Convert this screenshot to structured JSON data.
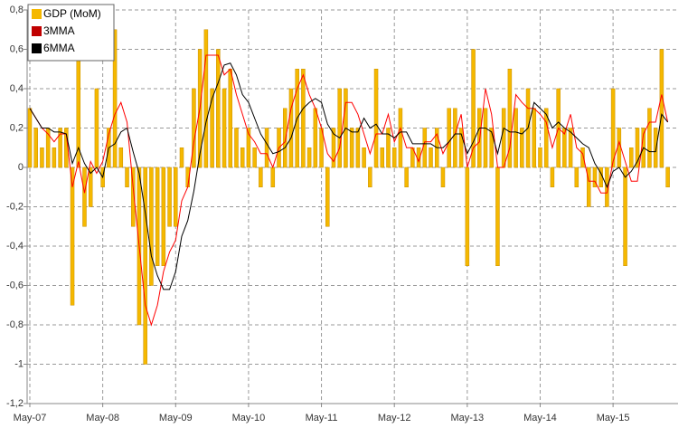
{
  "chart_data": {
    "type": "bar",
    "categories": [
      "May-07",
      null,
      null,
      null,
      null,
      null,
      null,
      null,
      null,
      null,
      null,
      null,
      "May-08",
      null,
      null,
      null,
      null,
      null,
      null,
      null,
      null,
      null,
      null,
      null,
      "May-09",
      null,
      null,
      null,
      null,
      null,
      null,
      null,
      null,
      null,
      null,
      null,
      "May-10",
      null,
      null,
      null,
      null,
      null,
      null,
      null,
      null,
      null,
      null,
      null,
      "May-11",
      null,
      null,
      null,
      null,
      null,
      null,
      null,
      null,
      null,
      null,
      null,
      "May-12",
      null,
      null,
      null,
      null,
      null,
      null,
      null,
      null,
      null,
      null,
      null,
      "May-13",
      null,
      null,
      null,
      null,
      null,
      null,
      null,
      null,
      null,
      null,
      null,
      "May-14",
      null,
      null,
      null,
      null,
      null,
      null,
      null,
      null,
      null,
      null,
      null,
      "May-15",
      null,
      null,
      null,
      null,
      null,
      null,
      null,
      null,
      null
    ],
    "series": [
      {
        "name": "GDP (MoM)",
        "type": "bar",
        "color": "#f5b800",
        "values": [
          0.3,
          0.2,
          0.1,
          0.2,
          0.1,
          0.2,
          0.2,
          -0.7,
          0.6,
          -0.3,
          -0.2,
          0.4,
          -0.1,
          0.2,
          0.7,
          0.1,
          -0.1,
          -0.3,
          -0.8,
          -1.0,
          -0.6,
          -0.5,
          -0.5,
          -0.3,
          -0.3,
          0.1,
          -0.1,
          0.4,
          0.6,
          0.7,
          0.4,
          0.6,
          0.4,
          0.5,
          0.2,
          0.1,
          0.2,
          0.1,
          -0.1,
          0.2,
          -0.1,
          0.2,
          0.3,
          0.4,
          0.5,
          0.5,
          0.1,
          0.3,
          0.2,
          -0.3,
          0.2,
          0.4,
          0.4,
          0.2,
          0.2,
          0.1,
          -0.1,
          0.5,
          0.1,
          0.2,
          0.1,
          0.3,
          -0.1,
          0.1,
          0.1,
          0.2,
          0.1,
          0.2,
          -0.1,
          0.3,
          0.3,
          0.2,
          -0.5,
          0.6,
          0.3,
          0.3,
          0.2,
          -0.5,
          0.3,
          0.5,
          0.3,
          0.2,
          0.4,
          0.3,
          0.1,
          0.3,
          -0.1,
          0.4,
          0.2,
          0.2,
          -0.1,
          0.1,
          -0.2,
          -0.1,
          -0.1,
          -0.2,
          0.4,
          0.2,
          -0.5,
          0.1,
          0.2,
          0.2,
          0.3,
          0.2,
          0.6,
          -0.1
        ]
      },
      {
        "name": "3MMA",
        "type": "line",
        "color": "#ff0000",
        "legend_color": "#c00000",
        "values": [
          0.3,
          0.25,
          0.2,
          0.17,
          0.13,
          0.17,
          0.17,
          -0.1,
          0.03,
          -0.13,
          0.03,
          -0.03,
          0.03,
          0.17,
          0.27,
          0.33,
          0.23,
          -0.1,
          -0.4,
          -0.7,
          -0.8,
          -0.7,
          -0.53,
          -0.43,
          -0.37,
          -0.17,
          -0.1,
          0.13,
          0.3,
          0.57,
          0.57,
          0.57,
          0.47,
          0.5,
          0.37,
          0.27,
          0.17,
          0.13,
          0.07,
          0.07,
          0,
          0.1,
          0.13,
          0.3,
          0.4,
          0.47,
          0.37,
          0.3,
          0.2,
          0.07,
          0.03,
          0.1,
          0.33,
          0.33,
          0.27,
          0.17,
          0.07,
          0.17,
          0.17,
          0.27,
          0.13,
          0.2,
          0.1,
          0.1,
          0.03,
          0.13,
          0.13,
          0.17,
          0.07,
          0.13,
          0.17,
          0.27,
          0,
          0.1,
          0.13,
          0.4,
          0.27,
          0,
          0,
          0.1,
          0.37,
          0.33,
          0.3,
          0.3,
          0.27,
          0.23,
          0.1,
          0.2,
          0.17,
          0.27,
          0.1,
          0.07,
          -0.07,
          -0.07,
          -0.13,
          -0.13,
          0.03,
          0.13,
          0.03,
          -0.07,
          -0.07,
          0.17,
          0.23,
          0.23,
          0.37,
          0.23
        ]
      },
      {
        "name": "6MMA",
        "type": "line",
        "color": "#000000",
        "legend_color": "#000000",
        "values": [
          0.3,
          0.25,
          0.2,
          0.2,
          0.18,
          0.18,
          0.17,
          0.02,
          0.1,
          0.02,
          -0.03,
          0,
          -0.05,
          0.1,
          0.12,
          0.18,
          0.2,
          0.08,
          -0.03,
          -0.23,
          -0.45,
          -0.55,
          -0.62,
          -0.62,
          -0.53,
          -0.35,
          -0.27,
          -0.12,
          0.07,
          0.23,
          0.35,
          0.43,
          0.52,
          0.53,
          0.47,
          0.37,
          0.33,
          0.25,
          0.17,
          0.12,
          0.07,
          0.08,
          0.1,
          0.15,
          0.25,
          0.3,
          0.33,
          0.35,
          0.33,
          0.22,
          0.17,
          0.15,
          0.2,
          0.18,
          0.18,
          0.25,
          0.2,
          0.22,
          0.17,
          0.17,
          0.15,
          0.18,
          0.18,
          0.12,
          0.12,
          0.12,
          0.12,
          0.1,
          0.1,
          0.13,
          0.17,
          0.17,
          0.07,
          0.13,
          0.2,
          0.2,
          0.18,
          0.07,
          0.2,
          0.18,
          0.18,
          0.17,
          0.2,
          0.33,
          0.3,
          0.27,
          0.2,
          0.23,
          0.2,
          0.18,
          0.15,
          0.12,
          0.1,
          0.02,
          -0.03,
          -0.1,
          -0.02,
          0,
          -0.05,
          -0.02,
          0.03,
          0.1,
          0.08,
          0.08,
          0.27,
          0.23
        ]
      }
    ],
    "ylim": [
      -1.2,
      0.8
    ],
    "yticks": [
      {
        "value": 0.8,
        "label": "0,8"
      },
      {
        "value": 0.6,
        "label": "0,6"
      },
      {
        "value": 0.4,
        "label": "0,4"
      },
      {
        "value": 0.2,
        "label": "0,2"
      },
      0,
      {
        "value": -0.2,
        "label": "-0,2"
      },
      {
        "value": -0.4,
        "label": "-0,4"
      },
      {
        "value": -0.6,
        "label": "-0,6"
      },
      {
        "value": -0.8,
        "label": "-0,8"
      },
      -1,
      {
        "value": -1.2,
        "label": "-1,2"
      }
    ],
    "grid": true,
    "legend": "top-left"
  }
}
